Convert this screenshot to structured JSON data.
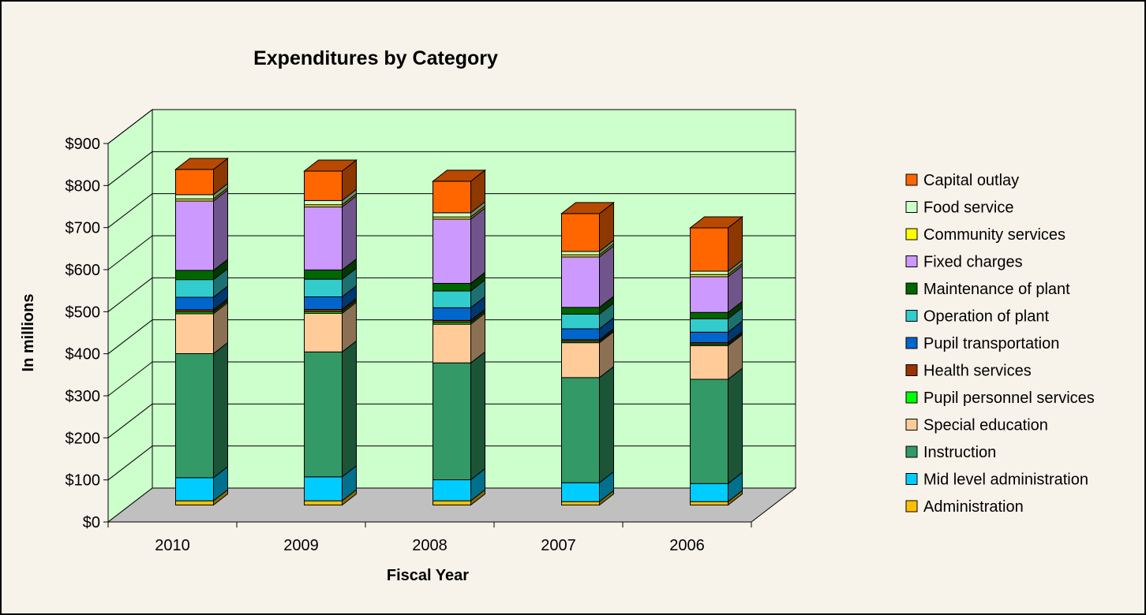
{
  "chart_data": {
    "type": "bar",
    "stacked": true,
    "three_d": true,
    "title": "Expenditures by Category",
    "xlabel": "Fiscal Year",
    "ylabel": "In millions",
    "ylim": [
      0,
      900
    ],
    "yticks": [
      0,
      100,
      200,
      300,
      400,
      500,
      600,
      700,
      800,
      900
    ],
    "ytick_labels": [
      "$0",
      "$100",
      "$200",
      "$300",
      "$400",
      "$500",
      "$600",
      "$700",
      "$800",
      "$900"
    ],
    "grid": true,
    "legend_position": "right",
    "categories": [
      "2010",
      "2009",
      "2008",
      "2007",
      "2006"
    ],
    "series": [
      {
        "name": "Administration",
        "color": "#ffc000",
        "values": [
          10,
          10,
          10,
          8,
          8
        ]
      },
      {
        "name": "Mid level administration",
        "color": "#00ccff",
        "values": [
          55,
          57,
          50,
          45,
          43
        ]
      },
      {
        "name": "Instruction",
        "color": "#339966",
        "values": [
          295,
          297,
          278,
          250,
          248
        ]
      },
      {
        "name": "Special education",
        "color": "#ffcc99",
        "values": [
          95,
          92,
          92,
          83,
          80
        ]
      },
      {
        "name": "Pupil personnel services",
        "color": "#00ff00",
        "values": [
          4,
          4,
          4,
          3,
          3
        ]
      },
      {
        "name": "Health services",
        "color": "#993300",
        "values": [
          5,
          5,
          5,
          4,
          4
        ]
      },
      {
        "name": "Pupil transportation",
        "color": "#0066cc",
        "values": [
          30,
          30,
          30,
          26,
          25
        ]
      },
      {
        "name": "Operation of plant",
        "color": "#33cccc",
        "values": [
          42,
          42,
          40,
          35,
          32
        ]
      },
      {
        "name": "Maintenance of plant",
        "color": "#006600",
        "values": [
          22,
          22,
          18,
          16,
          15
        ]
      },
      {
        "name": "Fixed charges",
        "color": "#cc99ff",
        "values": [
          165,
          150,
          153,
          120,
          85
        ]
      },
      {
        "name": "Community services",
        "color": "#ffff00",
        "values": [
          5,
          5,
          5,
          5,
          5
        ]
      },
      {
        "name": "Food service",
        "color": "#ccffcc",
        "values": [
          10,
          10,
          10,
          8,
          8
        ]
      },
      {
        "name": "Capital outlay",
        "color": "#ff6600",
        "values": [
          60,
          70,
          75,
          90,
          103
        ]
      }
    ]
  }
}
